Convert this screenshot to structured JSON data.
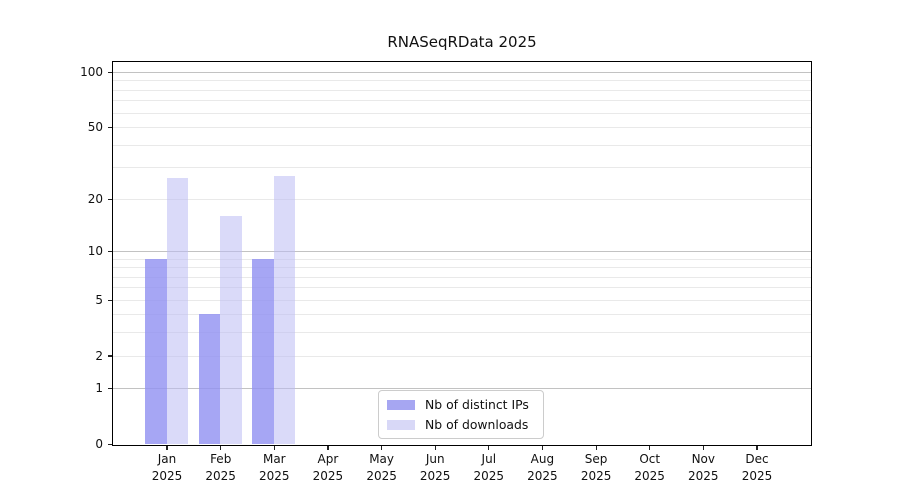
{
  "title": "RNASeqRData 2025",
  "chart_data": {
    "type": "bar",
    "title": "RNASeqRData 2025",
    "categories": [
      "Jan 2025",
      "Feb 2025",
      "Mar 2025",
      "Apr 2025",
      "May 2025",
      "Jun 2025",
      "Jul 2025",
      "Aug 2025",
      "Sep 2025",
      "Oct 2025",
      "Nov 2025",
      "Dec 2025"
    ],
    "months": [
      "Jan",
      "Feb",
      "Mar",
      "Apr",
      "May",
      "Jun",
      "Jul",
      "Aug",
      "Sep",
      "Oct",
      "Nov",
      "Dec"
    ],
    "year_label": "2025",
    "series": [
      {
        "name": "Nb of distinct IPs",
        "color": "rgba(146,146,242,0.82)",
        "legend_color": "#a6a6f2",
        "values": [
          9,
          4,
          9,
          null,
          null,
          null,
          null,
          null,
          null,
          null,
          null,
          null
        ]
      },
      {
        "name": "Nb of downloads",
        "color": "rgba(188,188,244,0.55)",
        "legend_color": "#d8d8f7",
        "values": [
          26,
          16,
          27,
          null,
          null,
          null,
          null,
          null,
          null,
          null,
          null,
          null
        ]
      }
    ],
    "xlabel": "",
    "ylabel": "",
    "y_ticks": [
      0,
      1,
      2,
      5,
      10,
      20,
      50,
      100
    ],
    "y_minor_gridlines": [
      2,
      3,
      4,
      5,
      6,
      7,
      8,
      9,
      20,
      30,
      40,
      50,
      60,
      70,
      80,
      90
    ],
    "y_major_gridlines": [
      1,
      10,
      100
    ],
    "ylim": [
      0,
      113
    ],
    "scale": "log10(value+1)",
    "grid": true,
    "legend_position": "bottom-center"
  },
  "colors": {
    "bar_distinct_ips": "#a6a6f2",
    "bar_downloads": "#d8d8f7",
    "major_gridline": "#c2c2c2",
    "minor_gridline": "#e9e9e9",
    "axis": "#000000"
  }
}
